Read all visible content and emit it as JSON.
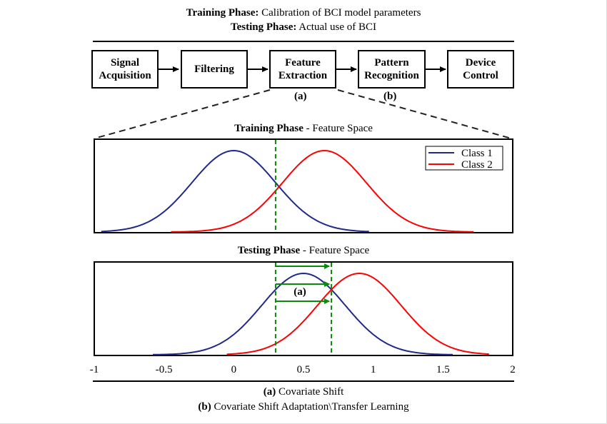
{
  "header": {
    "line1_bold": "Training Phase:",
    "line1_text": " Calibration of BCI model parameters",
    "line2_bold": "Testing Phase:",
    "line2_text": " Actual use of BCI"
  },
  "pipeline": {
    "boxes": [
      {
        "line1": "Signal",
        "line2": "Acquisition"
      },
      {
        "line1": "Filtering",
        "line2": ""
      },
      {
        "line1": "Feature",
        "line2": "Extraction"
      },
      {
        "line1": "Pattern",
        "line2": "Recognition"
      },
      {
        "line1": "Device",
        "line2": "Control"
      }
    ],
    "label_a": "(a)",
    "label_b": "(b)"
  },
  "training_title": {
    "bold": "Training Phase",
    "text": " - Feature Space"
  },
  "testing_title": {
    "bold": "Testing Phase",
    "text": " - Feature Space"
  },
  "shift_label": "(a)",
  "footer": {
    "line1_bold": "(a)",
    "line1_text": " Covariate Shift",
    "line2_bold": "(b)",
    "line2_text": " Covariate Shift Adaptation\\Transfer Learning"
  },
  "chart_data": [
    {
      "type": "line",
      "title": "Training Phase - Feature Space",
      "xlim": [
        -1,
        2
      ],
      "series": [
        {
          "name": "Class 1",
          "color": "#1f2a8a",
          "mean": 0.0,
          "std": 0.3,
          "x_range": [
            -0.95,
            0.97
          ]
        },
        {
          "name": "Class 2",
          "color": "#ff0000",
          "mean": 0.65,
          "std": 0.3,
          "x_range": [
            -0.45,
            1.72
          ]
        }
      ],
      "threshold_x": 0.3,
      "legend": "top-right"
    },
    {
      "type": "line",
      "title": "Testing Phase - Feature Space",
      "xlim": [
        -1,
        2
      ],
      "xticks": [
        "-1",
        "-0.5",
        "0",
        "0.5",
        "1",
        "1.5",
        "2"
      ],
      "series": [
        {
          "color": "#1f2a8a",
          "mean": 0.5,
          "std": 0.3,
          "x_range": [
            -0.58,
            1.57
          ]
        },
        {
          "color": "#ff0000",
          "mean": 0.9,
          "std": 0.3,
          "x_range": [
            -0.05,
            1.83
          ]
        }
      ],
      "threshold_x": [
        0.3,
        0.7
      ]
    }
  ]
}
